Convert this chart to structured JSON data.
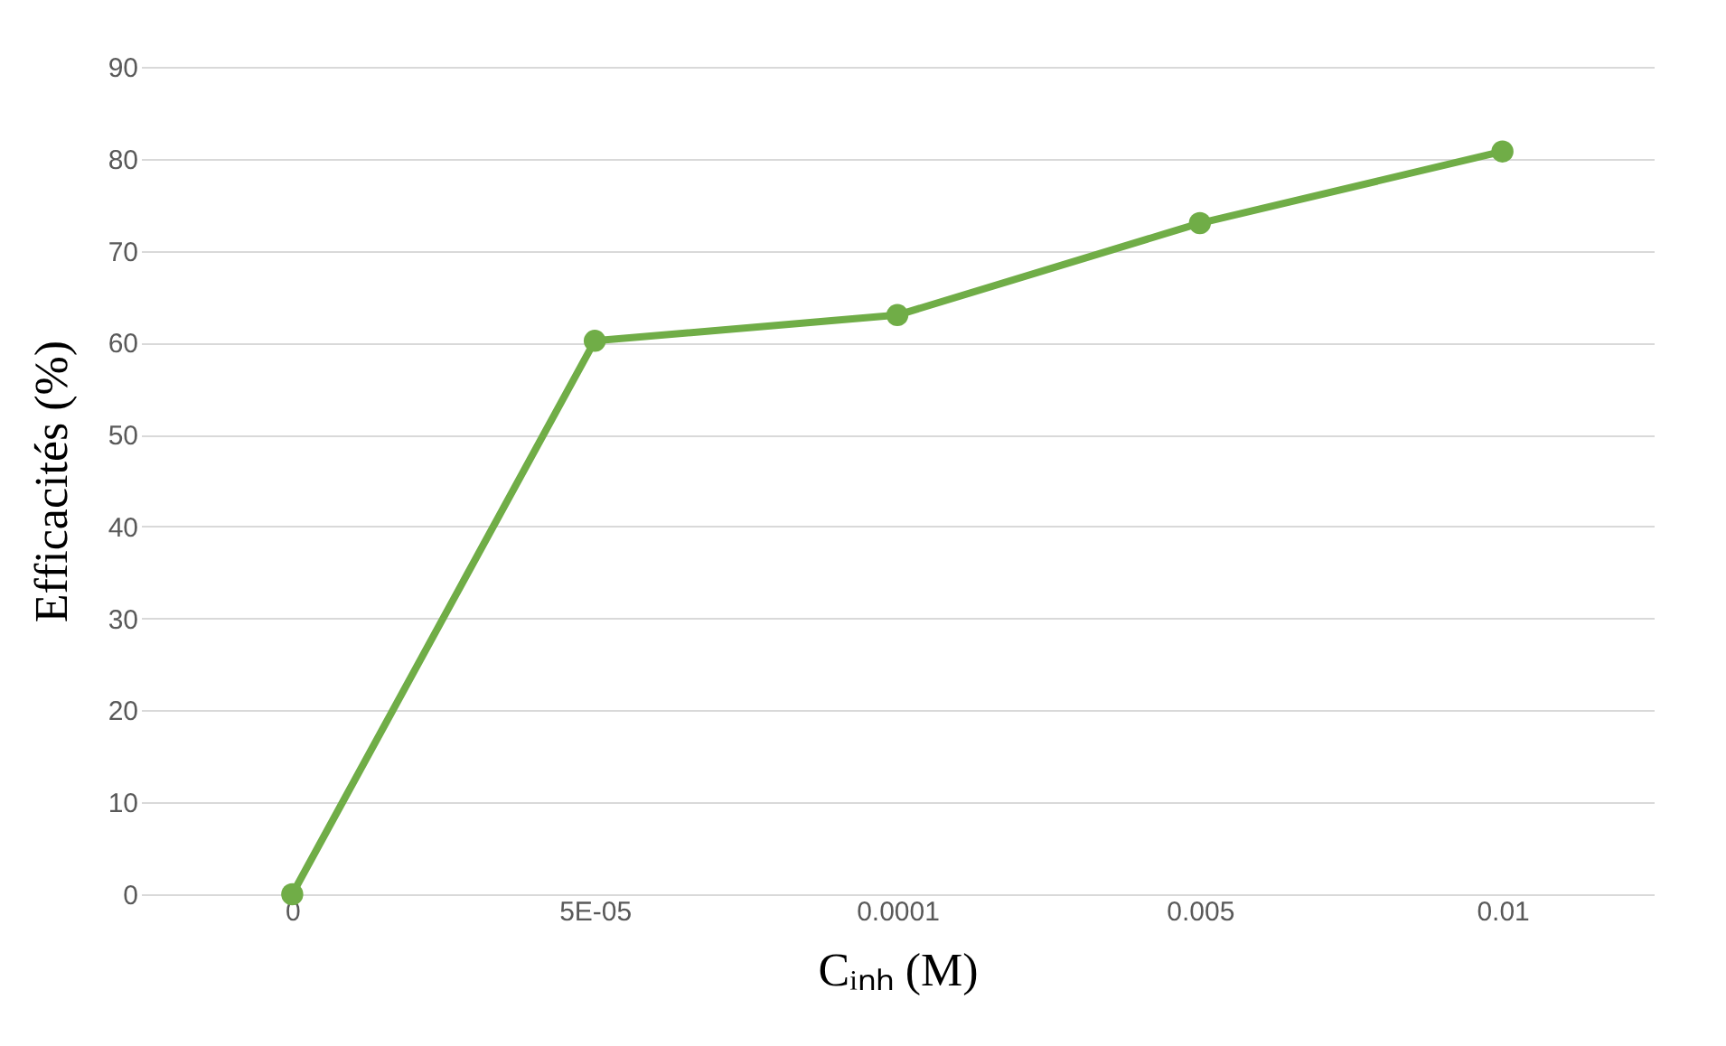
{
  "chart_data": {
    "type": "line",
    "xlabel": "Cᵢₙₕ (M)",
    "ylabel": "Efficacités (%)",
    "categories": [
      "0",
      "5E-05",
      "0.0001",
      "0.005",
      "0.01"
    ],
    "series": [
      {
        "color": "#70ad47",
        "values": [
          0,
          60.2,
          63,
          73,
          80.8
        ]
      }
    ],
    "ylim": [
      0,
      90
    ],
    "yticks": [
      0,
      10,
      20,
      30,
      40,
      50,
      60,
      70,
      80,
      90
    ],
    "grid": "y",
    "marker": "circle",
    "line_style": "solid",
    "legend": false
  }
}
